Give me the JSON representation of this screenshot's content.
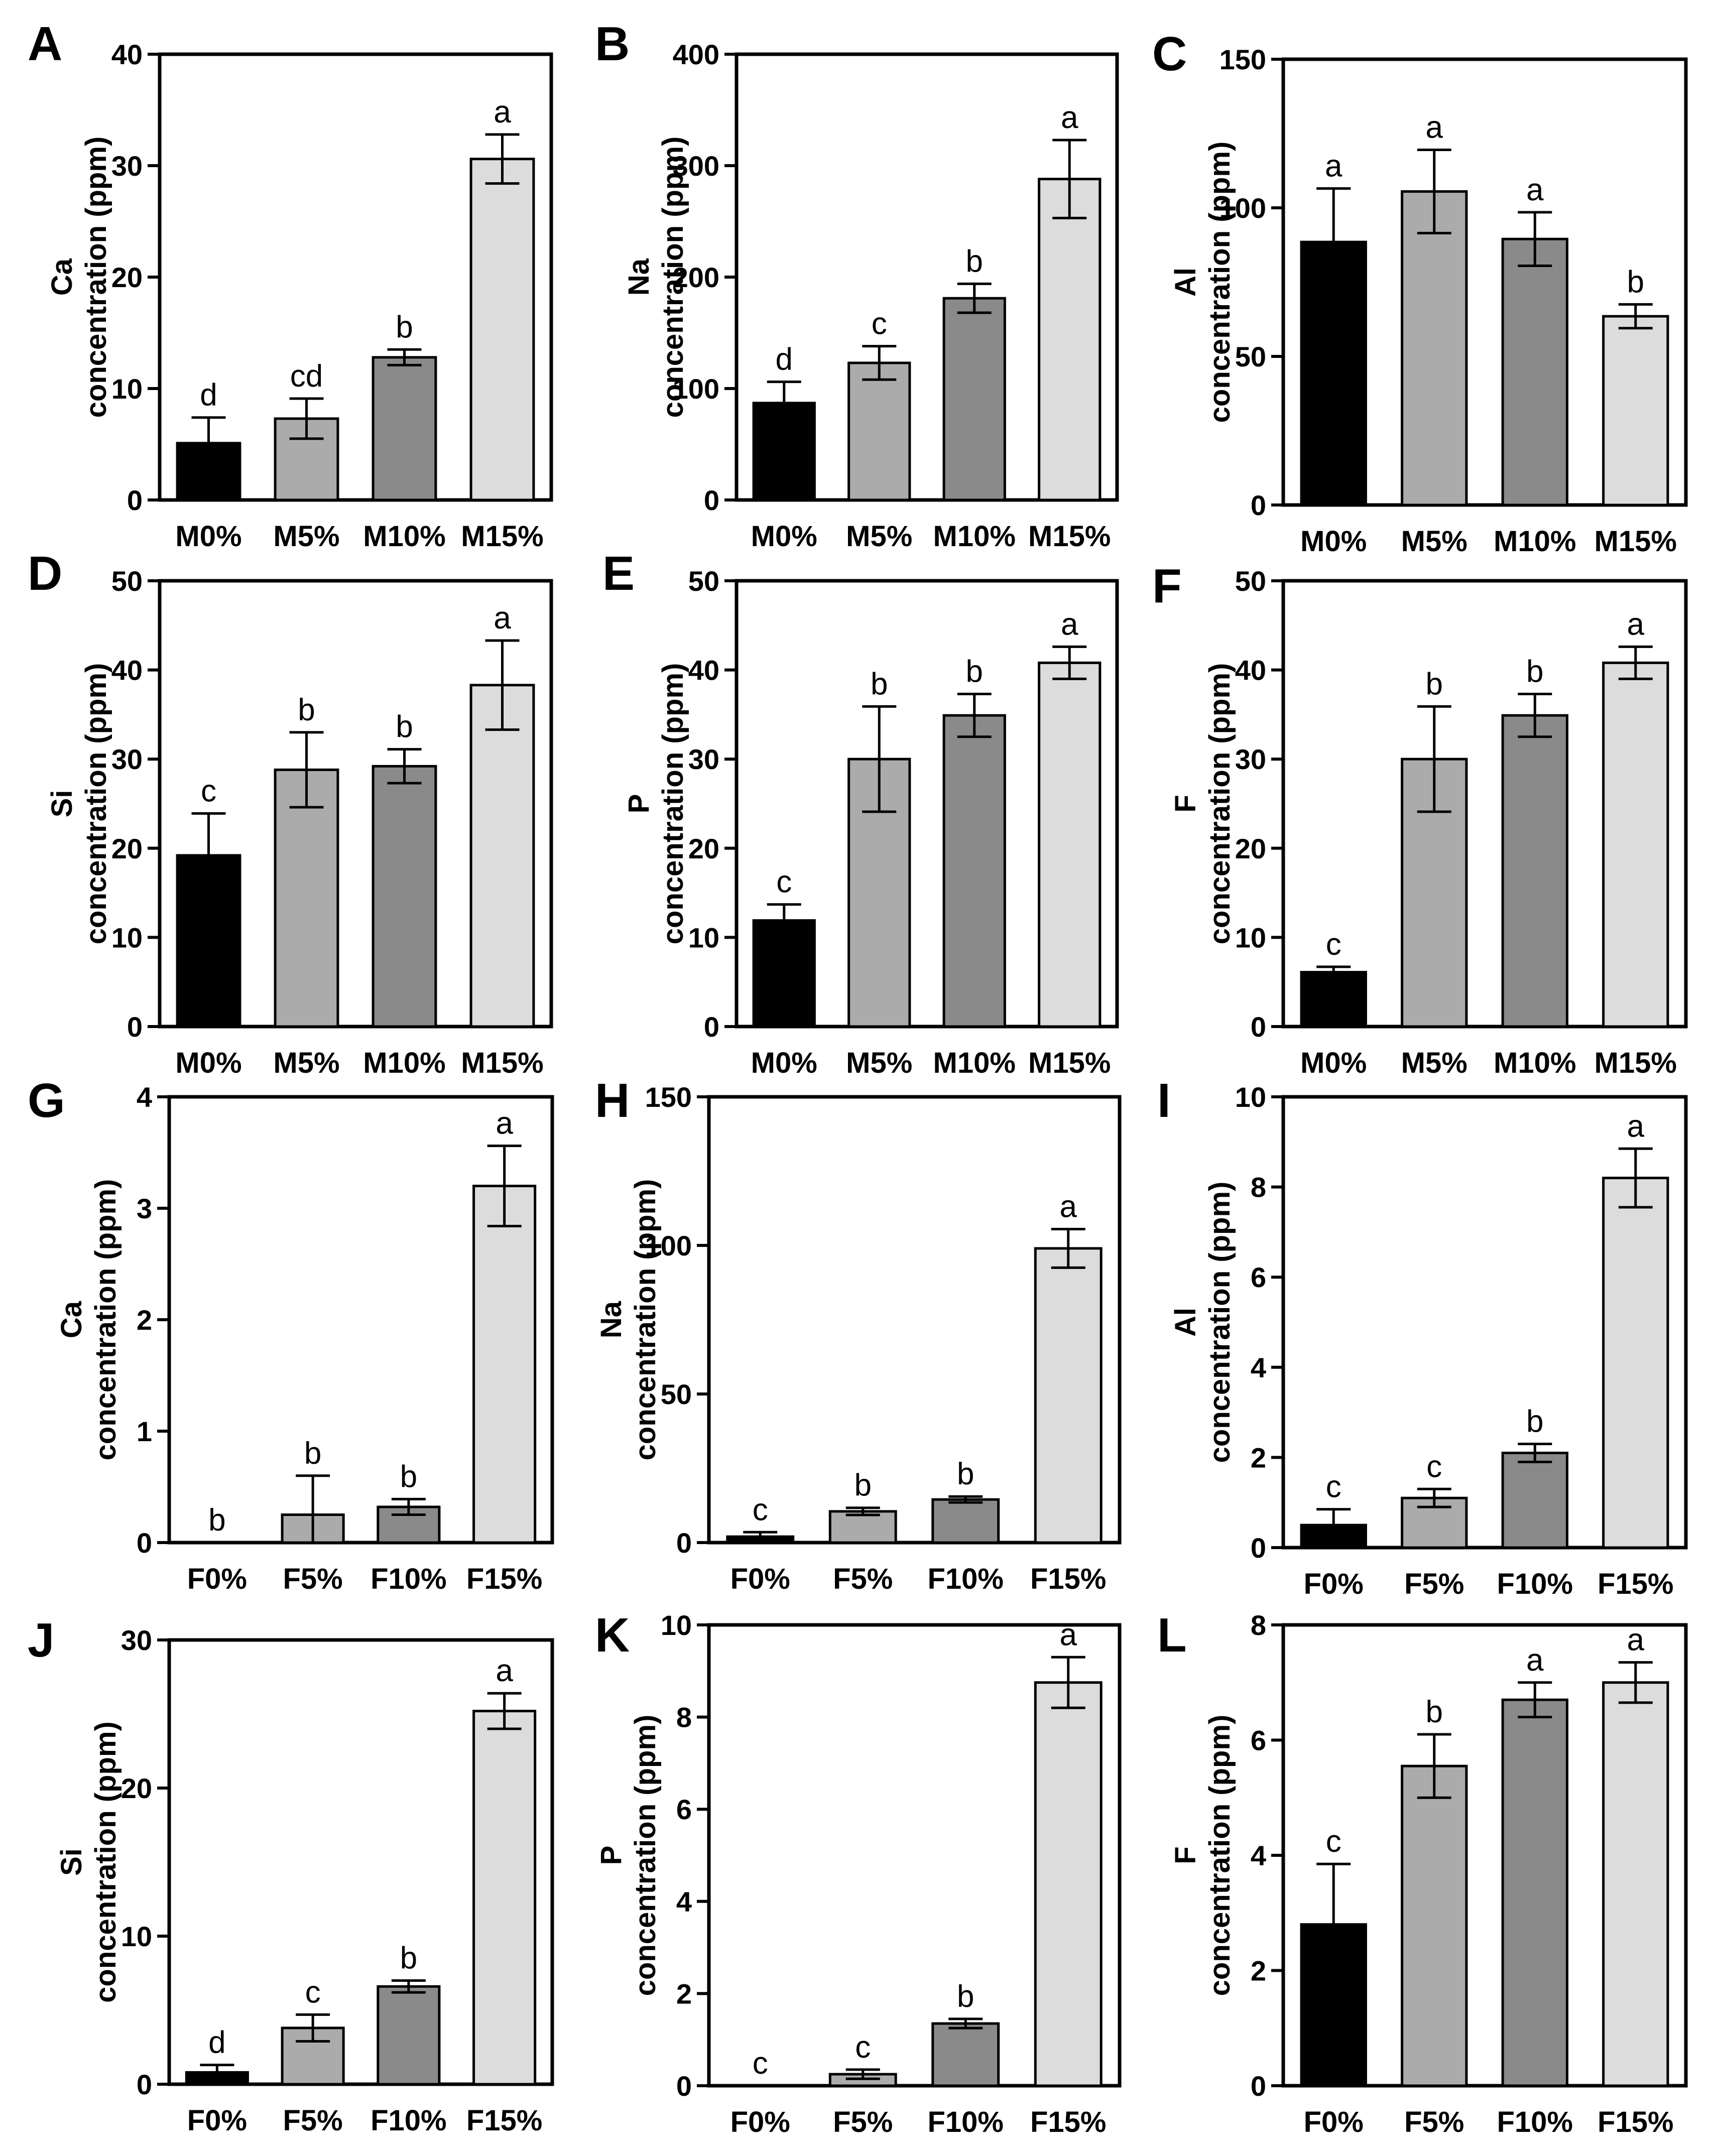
{
  "figure_title": "",
  "chart_data": [
    {
      "panel": "A",
      "type": "bar",
      "element": "Ca",
      "ylabel": "concentration (ppm)",
      "ylim": [
        0,
        40
      ],
      "yticks": [
        0,
        10,
        20,
        30,
        40
      ],
      "categories": [
        "M0%",
        "M5%",
        "M10%",
        "M15%"
      ],
      "values": [
        5.1,
        7.3,
        12.8,
        30.6
      ],
      "errors": [
        2.3,
        1.8,
        0.7,
        2.2
      ],
      "significance": [
        "d",
        "cd",
        "b",
        "a"
      ],
      "colors": [
        "#000000",
        "#ababab",
        "#8a8a8a",
        "#dcdcdc"
      ]
    },
    {
      "panel": "B",
      "type": "bar",
      "element": "Na",
      "ylabel": "concentration (ppm)",
      "ylim": [
        0,
        400
      ],
      "yticks": [
        0,
        100,
        200,
        300,
        400
      ],
      "categories": [
        "M0%",
        "M5%",
        "M10%",
        "M15%"
      ],
      "values": [
        87,
        123,
        181,
        288
      ],
      "errors": [
        19,
        15,
        13,
        35
      ],
      "significance": [
        "d",
        "c",
        "b",
        "a"
      ],
      "colors": [
        "#000000",
        "#ababab",
        "#8a8a8a",
        "#dcdcdc"
      ]
    },
    {
      "panel": "C",
      "type": "bar",
      "element": "Al",
      "ylabel": "concentration (ppm)",
      "ylim": [
        0,
        150
      ],
      "yticks": [
        0,
        50,
        100,
        150
      ],
      "categories": [
        "M0%",
        "M5%",
        "M10%",
        "M15%"
      ],
      "values": [
        88.5,
        105.5,
        89.5,
        63.5
      ],
      "errors": [
        18,
        14,
        9,
        4
      ],
      "significance": [
        "a",
        "a",
        "a",
        "b"
      ],
      "colors": [
        "#000000",
        "#ababab",
        "#8a8a8a",
        "#dcdcdc"
      ]
    },
    {
      "panel": "D",
      "type": "bar",
      "element": "Si",
      "ylabel": "concentration (ppm)",
      "ylim": [
        0,
        50
      ],
      "yticks": [
        0,
        10,
        20,
        30,
        40,
        50
      ],
      "categories": [
        "M0%",
        "M5%",
        "M10%",
        "M15%"
      ],
      "values": [
        19.2,
        28.8,
        29.2,
        38.3
      ],
      "errors": [
        4.7,
        4.2,
        1.9,
        5.0
      ],
      "significance": [
        "c",
        "b",
        "b",
        "a"
      ],
      "colors": [
        "#000000",
        "#ababab",
        "#8a8a8a",
        "#dcdcdc"
      ]
    },
    {
      "panel": "E",
      "type": "bar",
      "element": "P",
      "ylabel": "concentration (ppm)",
      "ylim": [
        0,
        50
      ],
      "yticks": [
        0,
        10,
        20,
        30,
        40,
        50
      ],
      "categories": [
        "M0%",
        "M5%",
        "M10%",
        "M15%"
      ],
      "values": [
        11.9,
        30.0,
        34.9,
        40.8
      ],
      "errors": [
        1.8,
        5.9,
        2.4,
        1.8
      ],
      "significance": [
        "c",
        "b",
        "b",
        "a"
      ],
      "colors": [
        "#000000",
        "#ababab",
        "#8a8a8a",
        "#dcdcdc"
      ]
    },
    {
      "panel": "F",
      "type": "bar",
      "element": "F",
      "ylabel": "concentration (ppm)",
      "ylim": [
        0,
        50
      ],
      "yticks": [
        0,
        10,
        20,
        30,
        40,
        50
      ],
      "categories": [
        "M0%",
        "M5%",
        "M10%",
        "M15%"
      ],
      "values": [
        6.1,
        30.0,
        34.9,
        40.8
      ],
      "errors": [
        0.6,
        5.9,
        2.4,
        1.8
      ],
      "significance": [
        "c",
        "b",
        "b",
        "a"
      ],
      "colors": [
        "#000000",
        "#ababab",
        "#8a8a8a",
        "#dcdcdc"
      ]
    },
    {
      "panel": "G",
      "type": "bar",
      "element": "Ca",
      "ylabel": "concentration (ppm)",
      "ylim": [
        0,
        4
      ],
      "yticks": [
        0,
        1,
        2,
        3,
        4
      ],
      "categories": [
        "F0%",
        "F5%",
        "F10%",
        "F15%"
      ],
      "values": [
        0,
        0.25,
        0.32,
        3.2
      ],
      "errors": [
        0,
        0.35,
        0.07,
        0.36
      ],
      "significance": [
        "b",
        "b",
        "b",
        "a"
      ],
      "colors": [
        "#000000",
        "#ababab",
        "#8a8a8a",
        "#dcdcdc"
      ]
    },
    {
      "panel": "H",
      "type": "bar",
      "element": "Na",
      "ylabel": "concentration (ppm)",
      "ylim": [
        0,
        150
      ],
      "yticks": [
        0,
        50,
        100,
        150
      ],
      "categories": [
        "F0%",
        "F5%",
        "F10%",
        "F15%"
      ],
      "values": [
        2.0,
        10.5,
        14.5,
        99
      ],
      "errors": [
        1.5,
        1.2,
        1.0,
        6.5
      ],
      "significance": [
        "c",
        "b",
        "b",
        "a"
      ],
      "colors": [
        "#000000",
        "#ababab",
        "#8a8a8a",
        "#dcdcdc"
      ]
    },
    {
      "panel": "I",
      "type": "bar",
      "element": "Al",
      "ylabel": "concentration (ppm)",
      "ylim": [
        0,
        10
      ],
      "yticks": [
        0,
        2,
        4,
        6,
        8,
        10
      ],
      "categories": [
        "F0%",
        "F5%",
        "F10%",
        "F15%"
      ],
      "values": [
        0.5,
        1.1,
        2.1,
        8.2
      ],
      "errors": [
        0.35,
        0.2,
        0.2,
        0.65
      ],
      "significance": [
        "c",
        "c",
        "b",
        "a"
      ],
      "colors": [
        "#000000",
        "#ababab",
        "#8a8a8a",
        "#dcdcdc"
      ]
    },
    {
      "panel": "J",
      "type": "bar",
      "element": "Si",
      "ylabel": "concentration (ppm)",
      "ylim": [
        0,
        30
      ],
      "yticks": [
        0,
        10,
        20,
        30
      ],
      "categories": [
        "F0%",
        "F5%",
        "F10%",
        "F15%"
      ],
      "values": [
        0.8,
        3.8,
        6.6,
        25.2
      ],
      "errors": [
        0.5,
        0.9,
        0.4,
        1.2
      ],
      "significance": [
        "d",
        "c",
        "b",
        "a"
      ],
      "colors": [
        "#000000",
        "#ababab",
        "#8a8a8a",
        "#dcdcdc"
      ]
    },
    {
      "panel": "K",
      "type": "bar",
      "element": "P",
      "ylabel": "concentration (ppm)",
      "ylim": [
        0,
        10
      ],
      "yticks": [
        0,
        2,
        4,
        6,
        8,
        10
      ],
      "categories": [
        "F0%",
        "F5%",
        "F10%",
        "F15%"
      ],
      "values": [
        0,
        0.25,
        1.35,
        8.75
      ],
      "errors": [
        0,
        0.1,
        0.1,
        0.55
      ],
      "significance": [
        "c",
        "c",
        "b",
        "a"
      ],
      "colors": [
        "#000000",
        "#ababab",
        "#8a8a8a",
        "#dcdcdc"
      ]
    },
    {
      "panel": "L",
      "type": "bar",
      "element": "F",
      "ylabel": "concentration (ppm)",
      "ylim": [
        0,
        8
      ],
      "yticks": [
        0,
        2,
        4,
        6,
        8
      ],
      "categories": [
        "F0%",
        "F5%",
        "F10%",
        "F15%"
      ],
      "values": [
        2.8,
        5.55,
        6.7,
        7.0
      ],
      "errors": [
        1.05,
        0.55,
        0.3,
        0.35
      ],
      "significance": [
        "c",
        "b",
        "a",
        "a"
      ],
      "colors": [
        "#000000",
        "#ababab",
        "#8a8a8a",
        "#dcdcdc"
      ]
    }
  ]
}
